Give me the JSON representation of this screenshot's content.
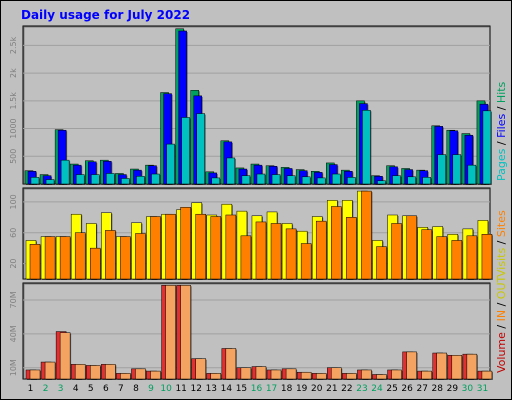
{
  "title": "Daily usage for July 2022",
  "legends": {
    "top": [
      {
        "text": "Pages",
        "color": "#00c0c0"
      },
      {
        "sep": " / "
      },
      {
        "text": "Files",
        "color": "#0000ff"
      },
      {
        "sep": " / "
      },
      {
        "text": "Hits",
        "color": "#00a060"
      }
    ],
    "middle": [
      {
        "text": "Visits",
        "color": "#c8c800"
      },
      {
        "sep": " / "
      },
      {
        "text": "Sites",
        "color": "#ff8000"
      }
    ],
    "bottom": [
      {
        "text": "Volume",
        "color": "#c00000"
      },
      {
        "sep": " / "
      },
      {
        "text": "IN",
        "color": "#ff8000"
      },
      {
        "sep": " / "
      },
      {
        "text": "OUT",
        "color": "#c8c800"
      }
    ]
  },
  "colors": {
    "hits": "#00a060",
    "files": "#0000ff",
    "pages": "#00c0c0",
    "visits": "#ffff00",
    "sites": "#ff8000",
    "volume": "#e0302f",
    "in": "#f4a460",
    "weekend_label": "#00a060",
    "panel_bg": "#c0c0c0",
    "grid": "#a0a0a0"
  },
  "chart_data": [
    {
      "type": "bar",
      "name": "daily-requests",
      "categories": [
        "1",
        "2",
        "3",
        "4",
        "5",
        "6",
        "7",
        "8",
        "9",
        "10",
        "11",
        "12",
        "13",
        "14",
        "15",
        "16",
        "17",
        "18",
        "19",
        "20",
        "21",
        "22",
        "23",
        "24",
        "25",
        "26",
        "27",
        "28",
        "29",
        "30",
        "31"
      ],
      "weekend_days": [
        "2",
        "3",
        "9",
        "10",
        "16",
        "17",
        "23",
        "24",
        "30",
        "31"
      ],
      "yticks": [
        500,
        1000,
        1500,
        2000,
        2500
      ],
      "ytick_labels": [
        "500",
        "1000",
        "1.5k",
        "2k",
        "2.5k"
      ],
      "ylim": [
        0,
        2850
      ],
      "series": [
        {
          "name": "Hits",
          "values": [
            240,
            170,
            980,
            360,
            420,
            430,
            190,
            270,
            340,
            1650,
            2800,
            1690,
            220,
            780,
            290,
            360,
            330,
            300,
            260,
            230,
            380,
            250,
            1500,
            150,
            330,
            280,
            250,
            1050,
            970,
            910,
            1500
          ]
        },
        {
          "name": "Files",
          "values": [
            230,
            150,
            970,
            340,
            400,
            410,
            170,
            250,
            330,
            1630,
            2760,
            1590,
            200,
            760,
            270,
            340,
            320,
            280,
            240,
            210,
            350,
            230,
            1450,
            140,
            310,
            260,
            240,
            1040,
            960,
            880,
            1440
          ]
        },
        {
          "name": "Pages",
          "values": [
            120,
            80,
            430,
            170,
            170,
            190,
            100,
            140,
            180,
            720,
            1200,
            1270,
            110,
            470,
            150,
            180,
            170,
            150,
            130,
            110,
            180,
            120,
            1330,
            60,
            150,
            130,
            120,
            530,
            530,
            340,
            1320
          ]
        }
      ]
    },
    {
      "type": "bar",
      "name": "daily-visits",
      "categories": [
        "1",
        "2",
        "3",
        "4",
        "5",
        "6",
        "7",
        "8",
        "9",
        "10",
        "11",
        "12",
        "13",
        "14",
        "15",
        "16",
        "17",
        "18",
        "19",
        "20",
        "21",
        "22",
        "23",
        "24",
        "25",
        "26",
        "27",
        "28",
        "29",
        "30",
        "31"
      ],
      "yticks": [
        20,
        60,
        100
      ],
      "ytick_labels": [
        "20",
        "60",
        "100"
      ],
      "ylim": [
        0,
        118
      ],
      "series": [
        {
          "name": "Visits",
          "values": [
            50,
            55,
            55,
            84,
            72,
            86,
            55,
            73,
            81,
            84,
            90,
            99,
            83,
            97,
            88,
            82,
            87,
            72,
            62,
            81,
            102,
            102,
            114,
            50,
            83,
            82,
            67,
            68,
            58,
            65,
            76
          ]
        },
        {
          "name": "Sites",
          "values": [
            45,
            55,
            55,
            60,
            40,
            63,
            55,
            59,
            81,
            84,
            93,
            84,
            81,
            83,
            56,
            74,
            72,
            65,
            46,
            75,
            94,
            80,
            114,
            42,
            72,
            82,
            64,
            55,
            50,
            56,
            58
          ]
        }
      ]
    },
    {
      "type": "bar",
      "name": "daily-volume",
      "categories": [
        "1",
        "2",
        "3",
        "4",
        "5",
        "6",
        "7",
        "8",
        "9",
        "10",
        "11",
        "12",
        "13",
        "14",
        "15",
        "16",
        "17",
        "18",
        "19",
        "20",
        "21",
        "22",
        "23",
        "24",
        "25",
        "26",
        "27",
        "28",
        "29",
        "30",
        "31"
      ],
      "yticks": [
        10,
        40,
        70
      ],
      "ytick_labels": [
        "10M",
        "40M",
        "70M"
      ],
      "ylim": [
        0,
        85
      ],
      "series": [
        {
          "name": "Volume",
          "values": [
            8,
            15,
            42,
            13,
            12,
            13,
            5,
            9,
            7,
            83,
            83,
            18,
            5,
            27,
            10,
            11,
            8,
            9,
            6,
            5,
            10,
            5,
            8,
            4,
            8,
            24,
            7,
            23,
            21,
            22,
            7
          ]
        },
        {
          "name": "IN",
          "values": [
            8,
            15,
            41,
            13,
            12,
            13,
            5,
            9,
            7,
            83,
            83,
            18,
            5,
            27,
            10,
            11,
            8,
            9,
            6,
            5,
            10,
            5,
            8,
            4,
            8,
            24,
            7,
            23,
            21,
            22,
            7
          ]
        }
      ]
    }
  ]
}
